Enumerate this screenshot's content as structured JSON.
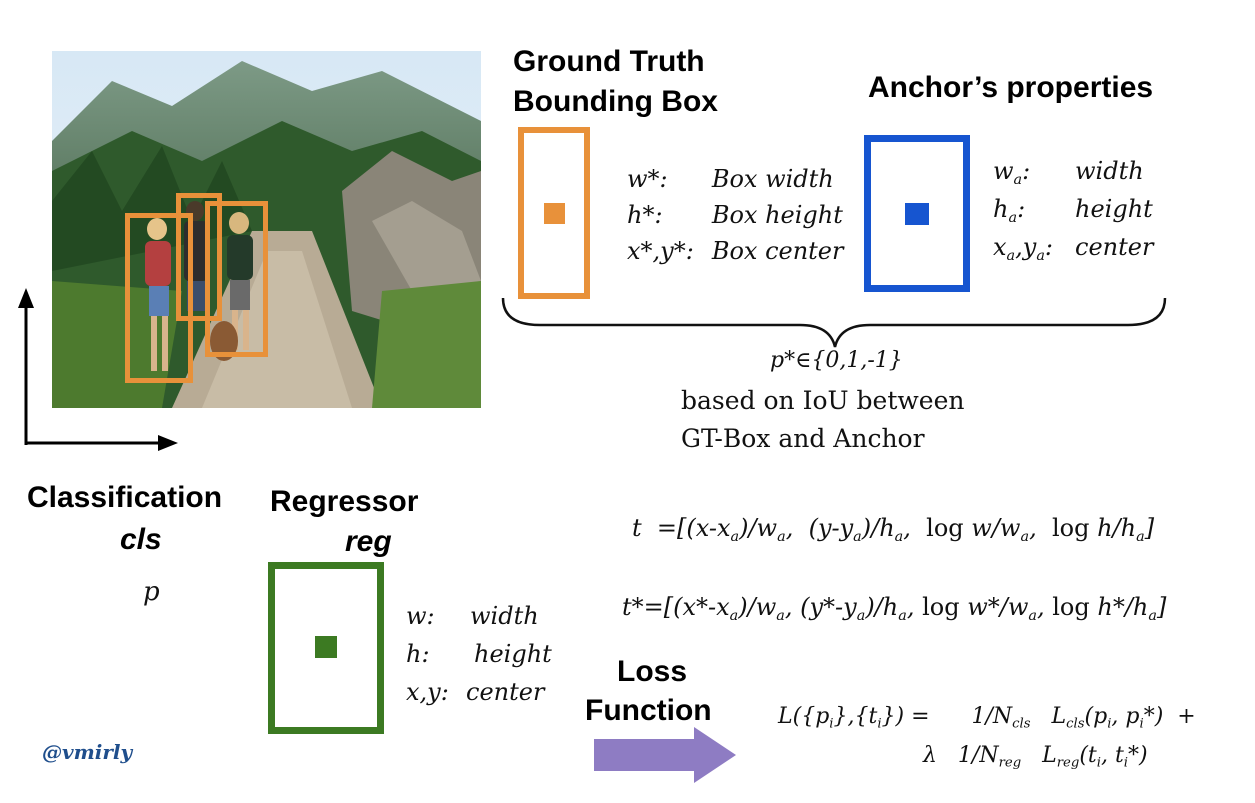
{
  "gt": {
    "title_line1": "Ground Truth",
    "title_line2": "Bounding Box",
    "props": [
      {
        "sym": "w*:",
        "desc": "Box width"
      },
      {
        "sym": "h*:",
        "desc": "Box height"
      },
      {
        "sym": "x*,y*:",
        "desc": "Box center"
      }
    ]
  },
  "anchor": {
    "title": "Anchor’s properties",
    "props": [
      {
        "sym": "w",
        "sub": "a",
        "tail": ":",
        "desc": "width"
      },
      {
        "sym": "h",
        "sub": "a",
        "tail": ":",
        "desc": "height"
      },
      {
        "sym": "x",
        "sub": "a",
        "mid": ",y",
        "sub2": "a",
        "tail": ":",
        "desc": "center"
      }
    ]
  },
  "iou": {
    "pstar": "p*∈{0,1,-1}",
    "line1": "based on IoU between",
    "line2": "GT-Box and Anchor"
  },
  "classification": {
    "title": "Classification",
    "subtitle": "cls",
    "var": "p"
  },
  "regressor": {
    "title": "Regressor",
    "subtitle": "reg",
    "props": [
      {
        "sym": "w:",
        "desc": "width"
      },
      {
        "sym": "h:",
        "desc": "height"
      },
      {
        "sym": "x,y:",
        "desc": "center"
      }
    ]
  },
  "loss": {
    "line1": "Loss",
    "line2": "Function"
  },
  "credit": "@vmirly",
  "colors": {
    "orange": "#E8913A",
    "blue": "#1655D0",
    "green": "#3C7A22",
    "purple": "#8E7CC3",
    "credit": "#1F4E8C"
  }
}
